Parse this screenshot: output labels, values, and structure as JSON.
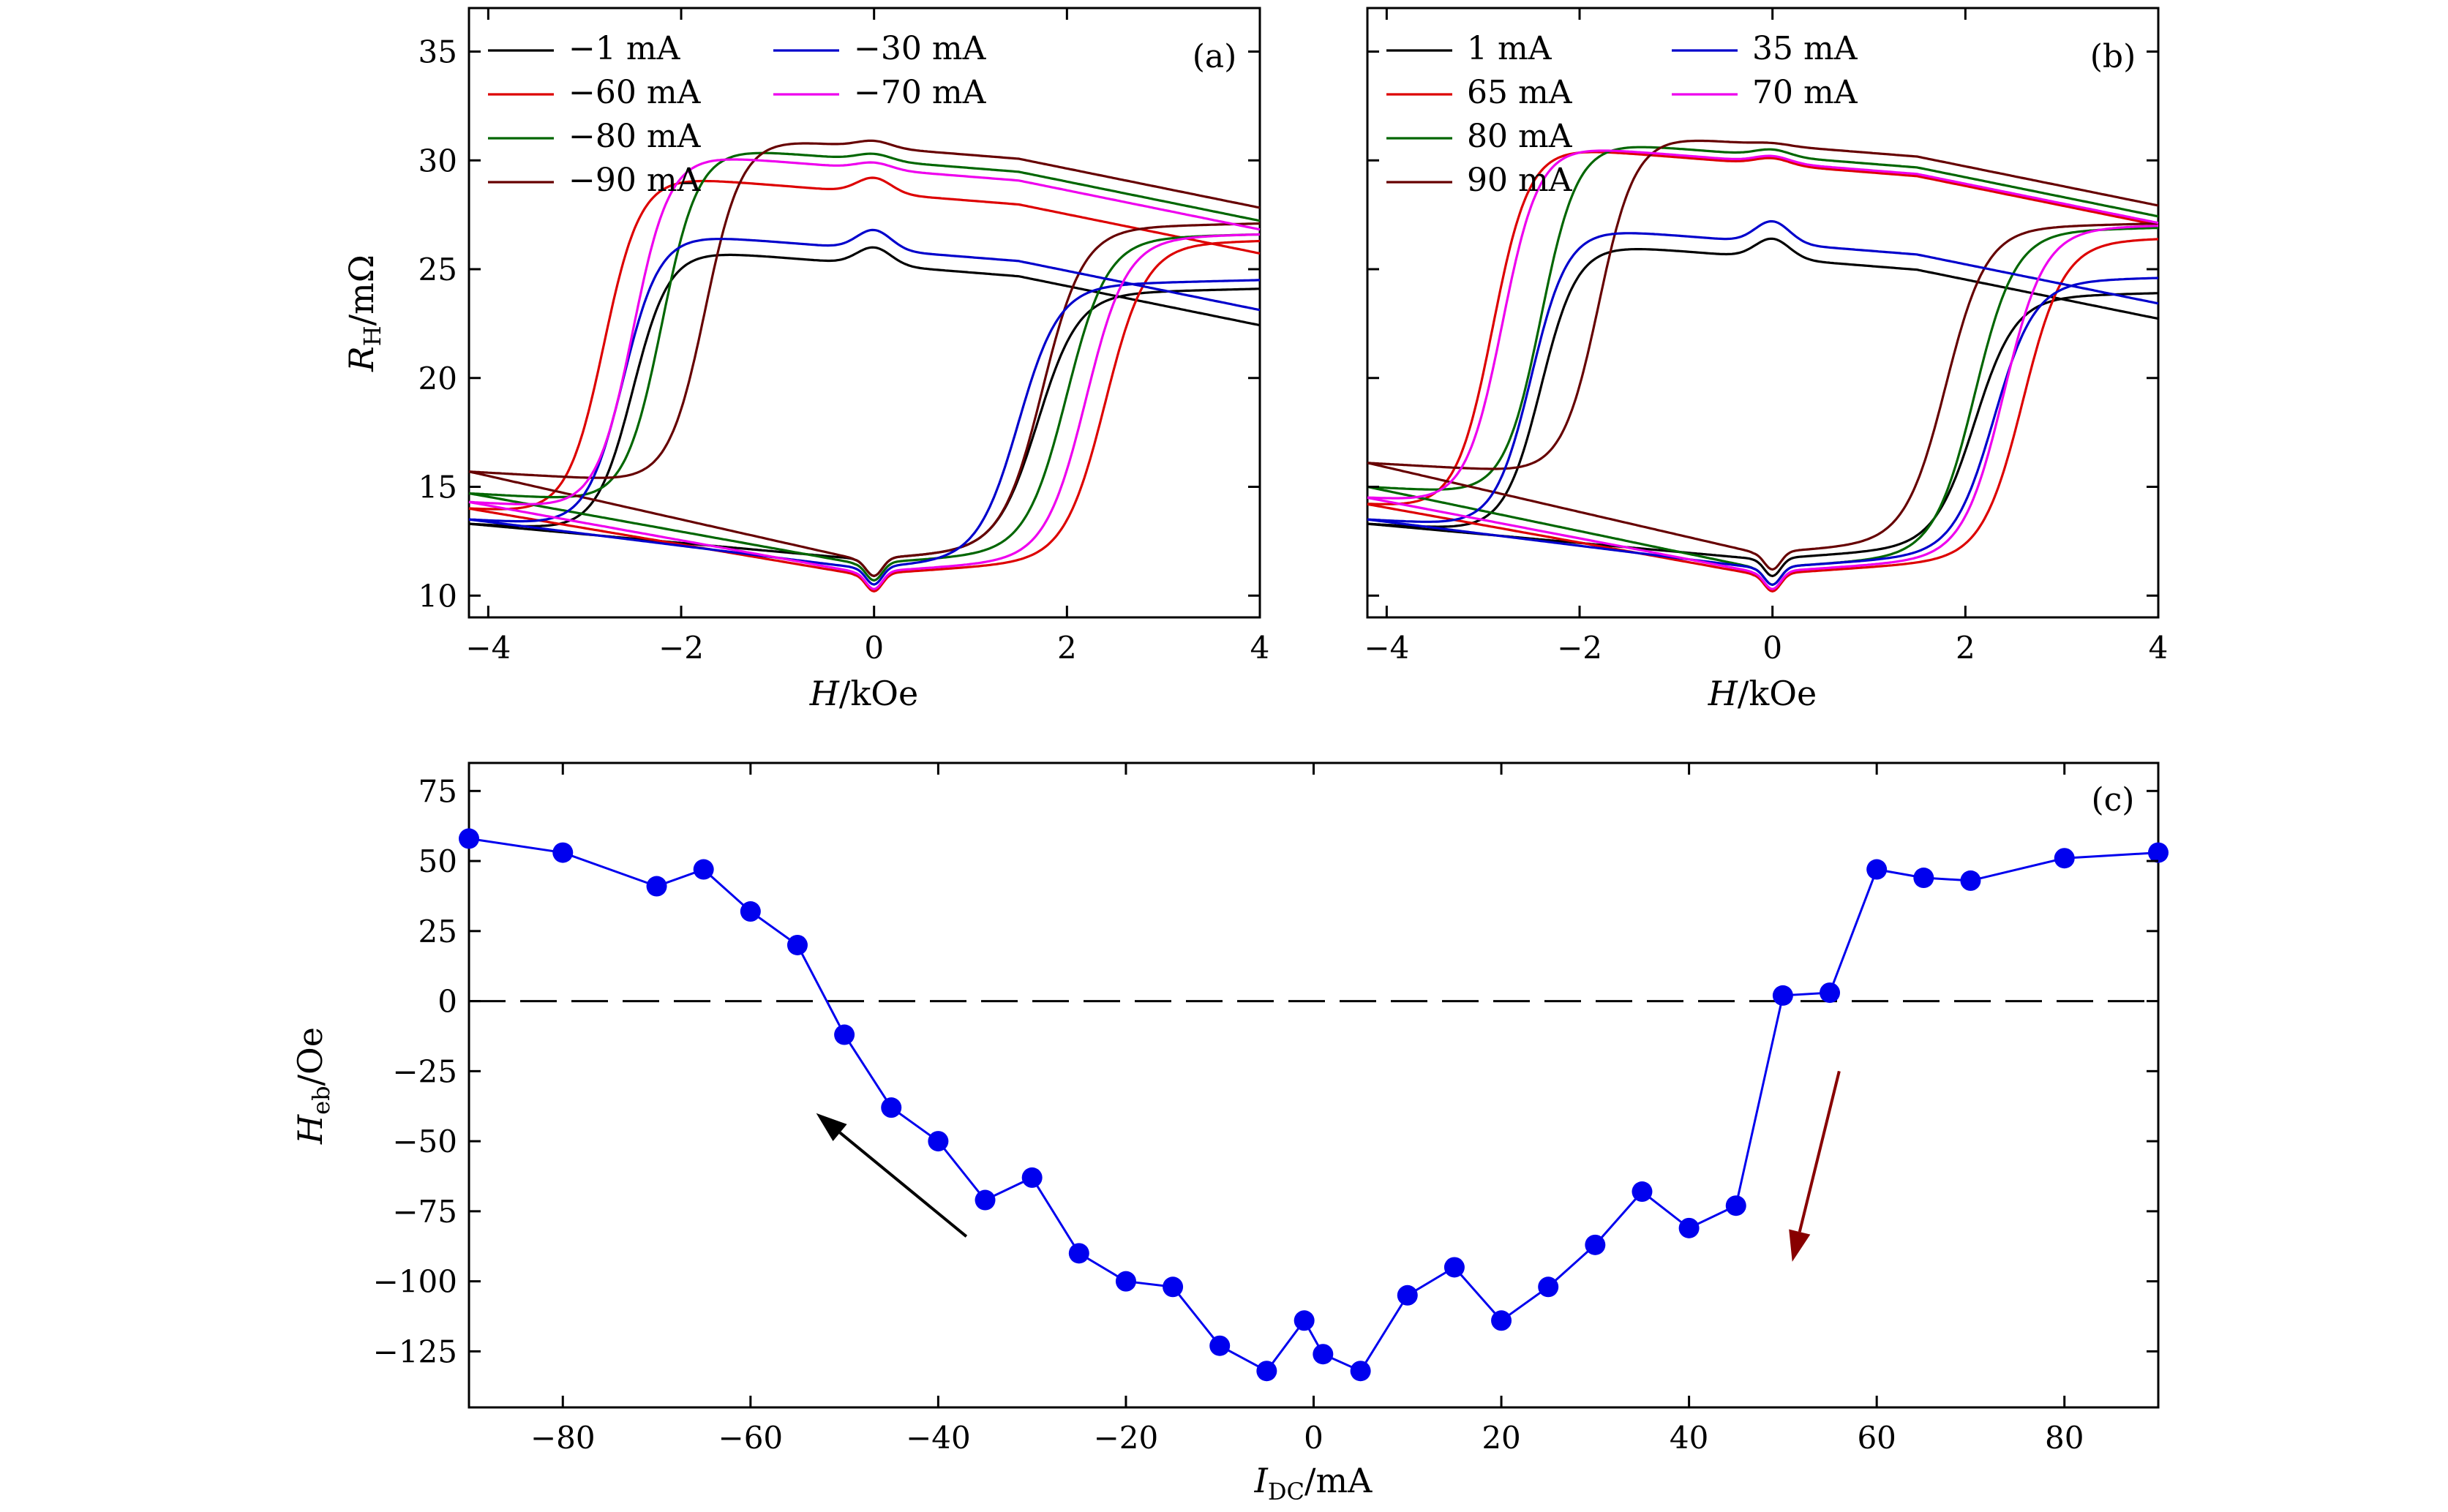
{
  "chart_data": [
    {
      "type": "line",
      "panel_label": "(a)",
      "xlabel": "H",
      "xlabel_unit": "/kOe",
      "ylabel": "R",
      "ylabel_sub": "H",
      "ylabel_unit": "/mΩ",
      "xlim": [
        -4.2,
        4
      ],
      "ylim": [
        9,
        37
      ],
      "xticks": [
        -4,
        -2,
        0,
        2,
        4
      ],
      "xtick_labels": [
        "−4",
        "−2",
        "0",
        "2",
        "4"
      ],
      "yticks": [
        10,
        15,
        20,
        25,
        30,
        35
      ],
      "ytick_labels": [
        "10",
        "15",
        "20",
        "25",
        "30",
        "35"
      ],
      "legend_position": "top-left",
      "series": [
        {
          "name": "−1 mA",
          "color": "#000000",
          "upper_plateau": 25.2,
          "peak": 26.0,
          "lower_plateau": 11.7,
          "hs_up": 1.7,
          "hs_down": -2.5,
          "up_end": 24.1,
          "low_start": 13.3
        },
        {
          "name": "−60 mA",
          "color": "#dd0000",
          "upper_plateau": 28.5,
          "peak": 29.2,
          "lower_plateau": 11.0,
          "hs_up": 2.4,
          "hs_down": -2.8,
          "up_end": 26.3,
          "low_start": 14.0
        },
        {
          "name": "−80 mA",
          "color": "#006600",
          "upper_plateau": 30.0,
          "peak": 30.3,
          "lower_plateau": 11.5,
          "hs_up": 2.0,
          "hs_down": -2.2,
          "up_end": 26.6,
          "low_start": 14.7
        },
        {
          "name": "−90 mA",
          "color": "#660000",
          "upper_plateau": 30.6,
          "peak": 30.9,
          "lower_plateau": 11.7,
          "hs_up": 1.75,
          "hs_down": -1.75,
          "up_end": 27.1,
          "low_start": 15.7
        },
        {
          "name": "−30 mA",
          "color": "#0000cc",
          "upper_plateau": 25.9,
          "peak": 26.8,
          "lower_plateau": 11.3,
          "hs_up": 1.5,
          "hs_down": -2.6,
          "up_end": 24.5,
          "low_start": 13.5
        },
        {
          "name": "−70 mA",
          "color": "#ee00ee",
          "upper_plateau": 29.6,
          "peak": 29.9,
          "lower_plateau": 11.1,
          "hs_up": 2.2,
          "hs_down": -2.5,
          "up_end": 26.6,
          "low_start": 14.3
        }
      ]
    },
    {
      "type": "line",
      "panel_label": "(b)",
      "xlabel": "H",
      "xlabel_unit": "/kOe",
      "xlim": [
        -4.2,
        4
      ],
      "ylim": [
        9,
        37
      ],
      "xticks": [
        -4,
        -2,
        0,
        2,
        4
      ],
      "xtick_labels": [
        "−4",
        "−2",
        "0",
        "2",
        "4"
      ],
      "legend_position": "top-left",
      "series": [
        {
          "name": "1 mA",
          "color": "#000000",
          "upper_plateau": 25.5,
          "peak": 26.4,
          "lower_plateau": 11.7,
          "hs_up": 2.1,
          "hs_down": -2.4,
          "up_end": 23.9,
          "low_start": 13.3
        },
        {
          "name": "65 mA",
          "color": "#dd0000",
          "upper_plateau": 29.8,
          "peak": 30.1,
          "lower_plateau": 11.0,
          "hs_up": 2.6,
          "hs_down": -2.9,
          "up_end": 26.4,
          "low_start": 14.2
        },
        {
          "name": "80 mA",
          "color": "#006600",
          "upper_plateau": 30.2,
          "peak": 30.5,
          "lower_plateau": 11.3,
          "hs_up": 2.1,
          "hs_down": -2.4,
          "up_end": 26.9,
          "low_start": 15.0
        },
        {
          "name": "90 mA",
          "color": "#660000",
          "upper_plateau": 30.7,
          "peak": 30.8,
          "lower_plateau": 12.0,
          "hs_up": 1.8,
          "hs_down": -1.8,
          "up_end": 27.1,
          "low_start": 16.1
        },
        {
          "name": "35 mA",
          "color": "#0000cc",
          "upper_plateau": 26.2,
          "peak": 27.2,
          "lower_plateau": 11.3,
          "hs_up": 2.3,
          "hs_down": -2.5,
          "up_end": 24.6,
          "low_start": 13.5
        },
        {
          "name": "70 mA",
          "color": "#ee00ee",
          "upper_plateau": 29.9,
          "peak": 30.2,
          "lower_plateau": 11.1,
          "hs_up": 2.4,
          "hs_down": -2.8,
          "up_end": 27.0,
          "low_start": 14.5
        }
      ]
    },
    {
      "type": "line",
      "panel_label": "(c)",
      "xlabel": "I",
      "xlabel_sub": "DC",
      "xlabel_unit": "/mA",
      "ylabel": "H",
      "ylabel_sub": "eb",
      "ylabel_unit": "/Oe",
      "xlim": [
        -90,
        90
      ],
      "ylim": [
        -145,
        85
      ],
      "xticks": [
        -80,
        -60,
        -40,
        -20,
        0,
        20,
        40,
        60,
        80
      ],
      "xtick_labels": [
        "−80",
        "−60",
        "−40",
        "−20",
        "0",
        "20",
        "40",
        "60",
        "80"
      ],
      "yticks": [
        75,
        50,
        25,
        0,
        -25,
        -50,
        -75,
        -100,
        -125
      ],
      "ytick_labels": [
        "75",
        "50",
        "25",
        "0",
        "−25",
        "−50",
        "−75",
        "−100",
        "−125"
      ],
      "series": [
        {
          "name": "Heb",
          "color": "#0000ee",
          "x": [
            -90,
            -80,
            -70,
            -65,
            -60,
            -55,
            -50,
            -45,
            -40,
            -35,
            -30,
            -25,
            -20,
            -15,
            -10,
            -5,
            -1,
            1,
            5,
            10,
            15,
            20,
            25,
            30,
            35,
            40,
            45,
            50,
            55,
            60,
            65,
            70,
            80,
            90
          ],
          "y": [
            58,
            53,
            41,
            47,
            32,
            20,
            -12,
            -38,
            -50,
            -71,
            -63,
            -90,
            -100,
            -102,
            -123,
            -132,
            -114,
            -126,
            -132,
            -105,
            -95,
            -114,
            -102,
            -87,
            -68,
            -81,
            -73,
            2,
            3,
            47,
            44,
            43,
            51,
            53
          ]
        }
      ],
      "reference_line_y": 0,
      "arrows": [
        {
          "color": "#000000",
          "from": [
            -37,
            -84
          ],
          "to": [
            -53,
            -40
          ]
        },
        {
          "color": "#880000",
          "from": [
            56,
            -25
          ],
          "to": [
            51,
            -93
          ]
        }
      ]
    }
  ]
}
